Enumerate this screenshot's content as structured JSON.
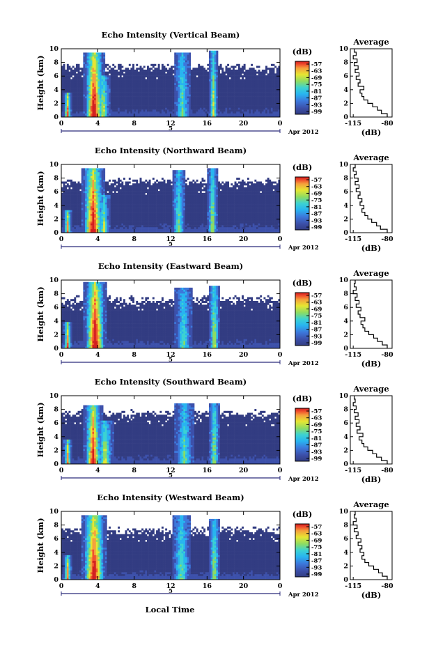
{
  "figure": {
    "xaxis_label": "Local Time",
    "date_label": "Apr 2012",
    "day_label": "5",
    "colorbar_unit": "(dB)",
    "avg_title": "Average",
    "avg_xlabel": "(dB)"
  },
  "palette": [
    "#323c82",
    "#3c50aa",
    "#3c78dc",
    "#28b4f0",
    "#3cd2d2",
    "#8cdc64",
    "#e6e632",
    "#f5a03c",
    "#f0502d",
    "#d21e1e"
  ],
  "chart_data": [
    {
      "type": "heatmap",
      "title": "Echo Intensity (Vertical Beam)",
      "ylabel": "Height (km)",
      "xticks": [
        "0",
        "4",
        "8",
        "12",
        "16",
        "20",
        "0"
      ],
      "yticks": [
        "0",
        "2",
        "4",
        "6",
        "8",
        "10"
      ],
      "xlim": [
        0,
        24
      ],
      "ylim": [
        0,
        10
      ],
      "colorbar_ticks": [
        "-57",
        "-63",
        "-69",
        "-75",
        "-81",
        "-87",
        "-93",
        "-99"
      ],
      "blank_fraction": 0.26,
      "events": [
        {
          "t": 0.7,
          "w": 0.35,
          "h": 3.6,
          "i": 0.75
        },
        {
          "t": 3.6,
          "w": 0.9,
          "h": 9.5,
          "i": 1.0
        },
        {
          "t": 4.6,
          "w": 0.6,
          "h": 6.2,
          "i": 0.55
        },
        {
          "t": 13.3,
          "w": 0.7,
          "h": 9.4,
          "i": 0.4
        },
        {
          "t": 16.7,
          "w": 0.4,
          "h": 9.6,
          "i": 0.5
        }
      ],
      "average_profile": {
        "x_ticks": [
          "-115",
          "-80"
        ],
        "y_ticks": [
          "0",
          "2",
          "4",
          "6",
          "8",
          "10"
        ],
        "xlim": [
          -118,
          -75
        ],
        "ylim": [
          0,
          10
        ],
        "heights": [
          0,
          0.5,
          1,
          1.5,
          2,
          2.5,
          3,
          3.5,
          4,
          4.5,
          5,
          5.5,
          6,
          6.5,
          7,
          7.5,
          8,
          8.5,
          9,
          9.5
        ],
        "values": [
          -80,
          -86,
          -90,
          -95,
          -100,
          -104,
          -106,
          -108,
          -104,
          -110,
          -108,
          -112,
          -109,
          -113,
          -110,
          -114,
          -111,
          -115,
          -112,
          -114
        ]
      }
    },
    {
      "type": "heatmap",
      "title": "Echo Intensity (Northward Beam)",
      "ylabel": "Height (km)",
      "xticks": [
        "0",
        "4",
        "8",
        "12",
        "16",
        "20",
        "0"
      ],
      "yticks": [
        "0",
        "2",
        "4",
        "6",
        "8",
        "10"
      ],
      "xlim": [
        0,
        24
      ],
      "ylim": [
        0,
        10
      ],
      "colorbar_ticks": [
        "-57",
        "-63",
        "-69",
        "-75",
        "-81",
        "-87",
        "-93",
        "-99"
      ],
      "blank_fraction": 0.24,
      "events": [
        {
          "t": 0.7,
          "w": 0.35,
          "h": 3.4,
          "i": 0.7
        },
        {
          "t": 3.5,
          "w": 1.0,
          "h": 9.5,
          "i": 0.95
        },
        {
          "t": 4.7,
          "w": 0.5,
          "h": 5.5,
          "i": 0.5
        },
        {
          "t": 12.9,
          "w": 0.6,
          "h": 9.3,
          "i": 0.4
        },
        {
          "t": 16.6,
          "w": 0.4,
          "h": 9.5,
          "i": 0.55
        }
      ],
      "average_profile": {
        "x_ticks": [
          "-115",
          "-80"
        ],
        "y_ticks": [
          "0",
          "2",
          "4",
          "6",
          "8",
          "10"
        ],
        "xlim": [
          -118,
          -75
        ],
        "ylim": [
          0,
          10
        ],
        "heights": [
          0,
          0.5,
          1,
          1.5,
          2,
          2.5,
          3,
          3.5,
          4,
          4.5,
          5,
          5.5,
          6,
          6.5,
          7,
          7.5,
          8,
          8.5,
          9,
          9.5
        ],
        "values": [
          -80,
          -87,
          -91,
          -96,
          -100,
          -103,
          -106,
          -104,
          -108,
          -106,
          -110,
          -108,
          -112,
          -109,
          -113,
          -110,
          -114,
          -112,
          -115,
          -113
        ]
      }
    },
    {
      "type": "heatmap",
      "title": "Echo Intensity (Eastward Beam)",
      "ylabel": "Height (km)",
      "xticks": [
        "0",
        "4",
        "8",
        "12",
        "16",
        "20",
        "0"
      ],
      "yticks": [
        "0",
        "2",
        "4",
        "6",
        "8",
        "10"
      ],
      "xlim": [
        0,
        24
      ],
      "ylim": [
        0,
        10
      ],
      "colorbar_ticks": [
        "-57",
        "-63",
        "-69",
        "-75",
        "-81",
        "-87",
        "-93",
        "-99"
      ],
      "blank_fraction": 0.28,
      "events": [
        {
          "t": 0.7,
          "w": 0.35,
          "h": 3.8,
          "i": 0.75
        },
        {
          "t": 3.7,
          "w": 1.0,
          "h": 9.6,
          "i": 1.0
        },
        {
          "t": 13.4,
          "w": 0.7,
          "h": 9.0,
          "i": 0.4
        },
        {
          "t": 16.8,
          "w": 0.45,
          "h": 9.2,
          "i": 0.55
        }
      ],
      "average_profile": {
        "x_ticks": [
          "-115",
          "-80"
        ],
        "y_ticks": [
          "0",
          "2",
          "4",
          "6",
          "8",
          "10"
        ],
        "xlim": [
          -118,
          -75
        ],
        "ylim": [
          0,
          10
        ],
        "heights": [
          0,
          0.5,
          1,
          1.5,
          2,
          2.5,
          3,
          3.5,
          4,
          4.5,
          5,
          5.5,
          6,
          6.5,
          7,
          7.5,
          8,
          8.5,
          9,
          9.5
        ],
        "values": [
          -80,
          -85,
          -90,
          -94,
          -99,
          -103,
          -105,
          -107,
          -103,
          -108,
          -110,
          -107,
          -112,
          -109,
          -113,
          -111,
          -115,
          -112,
          -114,
          -113
        ]
      }
    },
    {
      "type": "heatmap",
      "title": "Echo Intensity (Southward Beam)",
      "ylabel": "Height (km)",
      "xticks": [
        "0",
        "4",
        "8",
        "12",
        "16",
        "20",
        "0"
      ],
      "yticks": [
        "0",
        "2",
        "4",
        "6",
        "8",
        "10"
      ],
      "xlim": [
        0,
        24
      ],
      "ylim": [
        0,
        10
      ],
      "colorbar_ticks": [
        "-57",
        "-63",
        "-69",
        "-75",
        "-81",
        "-87",
        "-93",
        "-99"
      ],
      "blank_fraction": 0.25,
      "events": [
        {
          "t": 0.7,
          "w": 0.35,
          "h": 3.5,
          "i": 0.7
        },
        {
          "t": 3.5,
          "w": 0.8,
          "h": 8.5,
          "i": 0.9
        },
        {
          "t": 4.8,
          "w": 0.7,
          "h": 6.5,
          "i": 0.55
        },
        {
          "t": 13.5,
          "w": 0.8,
          "h": 9.0,
          "i": 0.4
        },
        {
          "t": 16.8,
          "w": 0.45,
          "h": 9.0,
          "i": 0.5
        }
      ],
      "average_profile": {
        "x_ticks": [
          "-115",
          "-80"
        ],
        "y_ticks": [
          "0",
          "2",
          "4",
          "6",
          "8",
          "10"
        ],
        "xlim": [
          -118,
          -75
        ],
        "ylim": [
          0,
          10
        ],
        "heights": [
          0,
          0.5,
          1,
          1.5,
          2,
          2.5,
          3,
          3.5,
          4,
          4.5,
          5,
          5.5,
          6,
          6.5,
          7,
          7.5,
          8,
          8.5,
          9,
          9.5
        ],
        "values": [
          -80,
          -86,
          -91,
          -95,
          -100,
          -104,
          -106,
          -109,
          -105,
          -111,
          -108,
          -112,
          -109,
          -113,
          -110,
          -114,
          -112,
          -115,
          -113,
          -114
        ]
      }
    },
    {
      "type": "heatmap",
      "title": "Echo Intensity (Westward Beam)",
      "ylabel": "Height (km)",
      "xticks": [
        "0",
        "4",
        "8",
        "12",
        "16",
        "20",
        "0"
      ],
      "yticks": [
        "0",
        "2",
        "4",
        "6",
        "8",
        "10"
      ],
      "xlim": [
        0,
        24
      ],
      "ylim": [
        0,
        10
      ],
      "colorbar_ticks": [
        "-57",
        "-63",
        "-69",
        "-75",
        "-81",
        "-87",
        "-93",
        "-99"
      ],
      "blank_fraction": 0.27,
      "events": [
        {
          "t": 0.7,
          "w": 0.35,
          "h": 3.7,
          "i": 0.7
        },
        {
          "t": 3.6,
          "w": 1.1,
          "h": 9.5,
          "i": 0.95
        },
        {
          "t": 13.2,
          "w": 0.8,
          "h": 9.4,
          "i": 0.4
        },
        {
          "t": 16.8,
          "w": 0.45,
          "h": 9.0,
          "i": 0.5
        }
      ],
      "average_profile": {
        "x_ticks": [
          "-115",
          "-80"
        ],
        "y_ticks": [
          "0",
          "2",
          "4",
          "6",
          "8",
          "10"
        ],
        "xlim": [
          -118,
          -75
        ],
        "ylim": [
          0,
          10
        ],
        "heights": [
          0,
          0.5,
          1,
          1.5,
          2,
          2.5,
          3,
          3.5,
          4,
          4.5,
          5,
          5.5,
          6,
          6.5,
          7,
          7.5,
          8,
          8.5,
          9,
          9.5
        ],
        "values": [
          -80,
          -85,
          -89,
          -94,
          -99,
          -103,
          -106,
          -104,
          -108,
          -106,
          -110,
          -107,
          -112,
          -110,
          -114,
          -111,
          -115,
          -112,
          -114,
          -113
        ]
      }
    }
  ]
}
